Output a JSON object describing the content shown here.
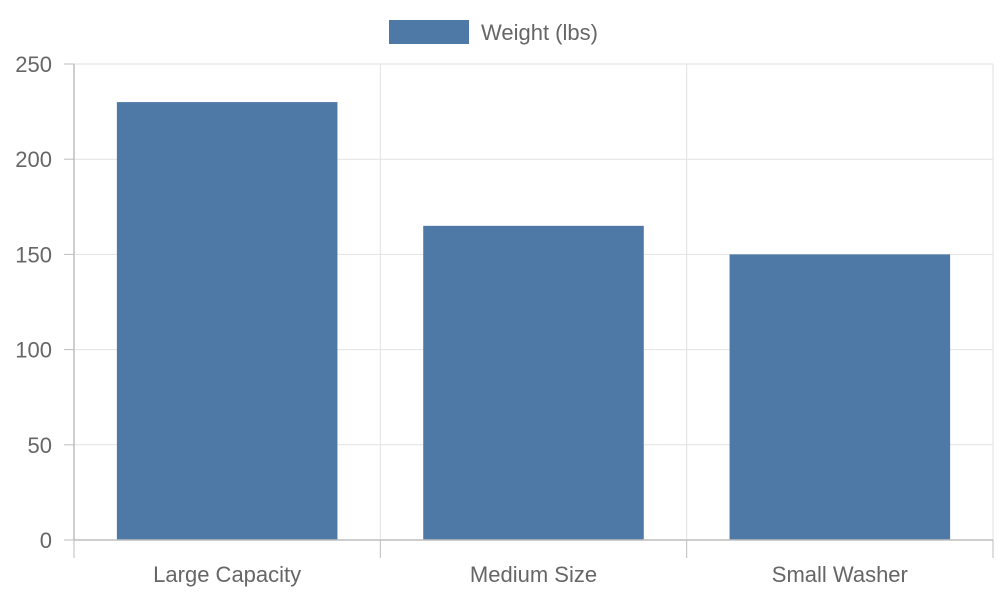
{
  "chart_data": {
    "type": "bar",
    "categories": [
      "Large Capacity",
      "Medium Size",
      "Small Washer"
    ],
    "series": [
      {
        "name": "Weight (lbs)",
        "values": [
          230,
          165,
          150
        ],
        "color": "#4e79a7"
      }
    ],
    "ylim": [
      0,
      250
    ],
    "yticks": [
      0,
      50,
      100,
      150,
      200,
      250
    ],
    "grid": true,
    "legend_position": "top-center"
  }
}
